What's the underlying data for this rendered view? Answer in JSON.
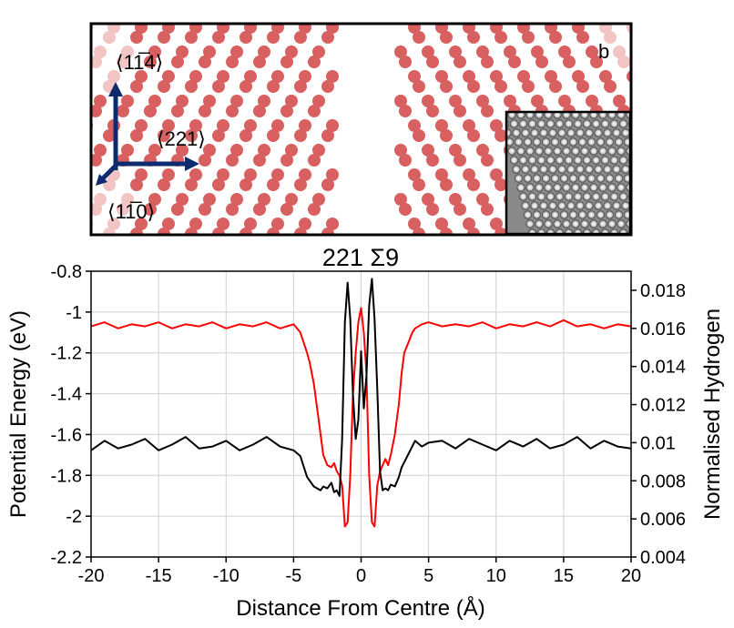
{
  "figure": {
    "panel_label": "b",
    "orientation_labels": {
      "up": "⟨11̅4⟩",
      "out": "⟨221⟩",
      "right": "⟨11̅0⟩"
    },
    "colors": {
      "atom": "#d96060",
      "atom_faded": "#f2c4c4",
      "arrow": "#0d2b6e",
      "inset_bg": "#8a8a8a"
    }
  },
  "chart_data": {
    "type": "line",
    "title": "221 Σ9",
    "xlabel": "Distance From Centre (Å)",
    "ylabel_left": "Potential Energy (eV)",
    "ylabel_right": "Normalised Hydrogen",
    "xlim": [
      -20,
      20
    ],
    "ylim_left": [
      -2.2,
      -0.8
    ],
    "ylim_right": [
      0.004,
      0.019
    ],
    "x_ticks": [
      -20,
      -15,
      -10,
      -5,
      0,
      5,
      10,
      15,
      20
    ],
    "y_ticks_left": [
      -2.2,
      -2,
      -1.8,
      -1.6,
      -1.4,
      -1.2,
      -1,
      -0.8
    ],
    "y_ticks_right": [
      0.004,
      0.006,
      0.008,
      0.01,
      0.012,
      0.014,
      0.016,
      0.018
    ],
    "y_tick_labels_left": [
      "-2.2",
      "-2",
      "-1.8",
      "-1.6",
      "-1.4",
      "-1.2",
      "-1",
      "-0.8"
    ],
    "y_tick_labels_right": [
      "0.004",
      "0.006",
      "0.008",
      "0.01",
      "0.012",
      "0.014",
      "0.016",
      "0.018"
    ],
    "x_tick_labels": [
      "-20",
      "-15",
      "-10",
      "-5",
      "0",
      "5",
      "10",
      "15",
      "20"
    ],
    "grid": true,
    "series": [
      {
        "axis": "left",
        "color": "#ff0000",
        "x": [
          -20,
          -19,
          -18,
          -17,
          -16,
          -15,
          -14,
          -13,
          -12,
          -11,
          -10,
          -9,
          -8,
          -7,
          -6,
          -5,
          -4.5,
          -4,
          -3.8,
          -3.5,
          -3.2,
          -3,
          -2.8,
          -2.5,
          -2.2,
          -2,
          -1.8,
          -1.6,
          -1.4,
          -1.2,
          -1,
          -0.8,
          -0.6,
          -0.4,
          -0.2,
          0,
          0.2,
          0.4,
          0.6,
          0.8,
          1,
          1.2,
          1.4,
          1.6,
          1.8,
          2,
          2.2,
          2.5,
          2.8,
          3,
          3.2,
          3.5,
          3.8,
          4,
          4.5,
          5,
          6,
          7,
          8,
          9,
          10,
          11,
          12,
          13,
          14,
          15,
          16,
          17,
          18,
          19,
          20
        ],
        "y": [
          -1.07,
          -1.05,
          -1.08,
          -1.06,
          -1.07,
          -1.05,
          -1.08,
          -1.06,
          -1.07,
          -1.05,
          -1.08,
          -1.06,
          -1.07,
          -1.05,
          -1.08,
          -1.06,
          -1.1,
          -1.2,
          -1.25,
          -1.35,
          -1.5,
          -1.6,
          -1.7,
          -1.75,
          -1.76,
          -1.74,
          -1.78,
          -1.8,
          -1.85,
          -2.05,
          -2.03,
          -1.8,
          -1.4,
          -1.2,
          -1.05,
          -0.98,
          -1.1,
          -1.3,
          -1.8,
          -2.03,
          -2.05,
          -1.85,
          -1.78,
          -1.75,
          -1.72,
          -1.75,
          -1.7,
          -1.6,
          -1.45,
          -1.3,
          -1.2,
          -1.15,
          -1.1,
          -1.08,
          -1.06,
          -1.05,
          -1.07,
          -1.06,
          -1.07,
          -1.05,
          -1.08,
          -1.06,
          -1.07,
          -1.05,
          -1.07,
          -1.04,
          -1.07,
          -1.06,
          -1.08,
          -1.06,
          -1.07
        ]
      },
      {
        "axis": "right",
        "color": "#000000",
        "x": [
          -20,
          -19,
          -18,
          -17,
          -16,
          -15,
          -14,
          -13,
          -12,
          -11,
          -10,
          -9,
          -8,
          -7,
          -6,
          -5,
          -4.5,
          -4,
          -3.5,
          -3,
          -2.8,
          -2.5,
          -2.2,
          -2,
          -1.8,
          -1.6,
          -1.4,
          -1.2,
          -1,
          -0.8,
          -0.6,
          -0.4,
          -0.2,
          0,
          0.2,
          0.4,
          0.6,
          0.8,
          1,
          1.2,
          1.4,
          1.6,
          1.8,
          2,
          2.2,
          2.5,
          2.8,
          3,
          3.5,
          4,
          4.5,
          5,
          6,
          7,
          8,
          9,
          10,
          11,
          12,
          13,
          14,
          15,
          16,
          17,
          18,
          19,
          20
        ],
        "y": [
          0.0096,
          0.0101,
          0.0097,
          0.0099,
          0.0102,
          0.0096,
          0.0099,
          0.0103,
          0.0097,
          0.0098,
          0.0101,
          0.0096,
          0.0099,
          0.0103,
          0.0098,
          0.0096,
          0.0093,
          0.0082,
          0.0077,
          0.0075,
          0.0077,
          0.0076,
          0.0079,
          0.0074,
          0.0075,
          0.0072,
          0.0102,
          0.0163,
          0.0184,
          0.0165,
          0.0125,
          0.0102,
          0.0112,
          0.0148,
          0.0118,
          0.0135,
          0.0172,
          0.0186,
          0.0165,
          0.0128,
          0.0085,
          0.0075,
          0.0076,
          0.0075,
          0.0078,
          0.0077,
          0.0082,
          0.0087,
          0.0094,
          0.0101,
          0.0098,
          0.01,
          0.0101,
          0.0097,
          0.0102,
          0.0099,
          0.0096,
          0.0101,
          0.0098,
          0.0102,
          0.0097,
          0.0099,
          0.0103,
          0.0097,
          0.0101,
          0.0098,
          0.0097
        ]
      }
    ]
  }
}
